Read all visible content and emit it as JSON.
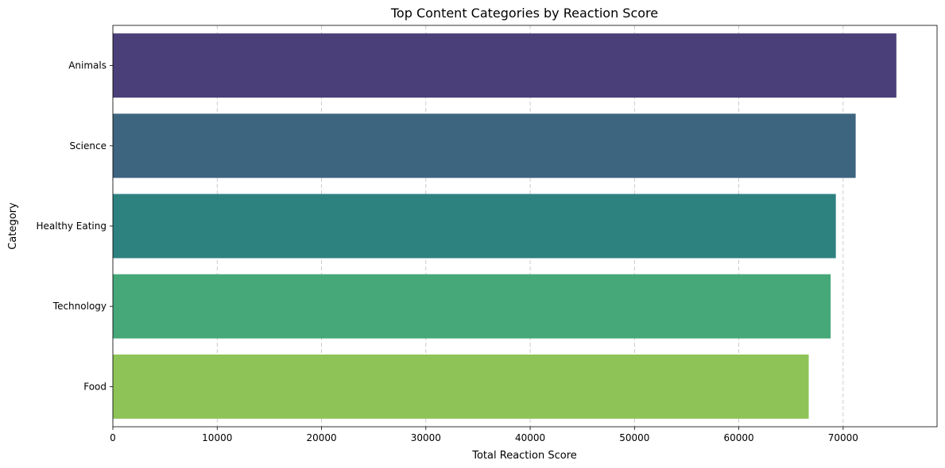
{
  "chart_data": {
    "type": "bar",
    "orientation": "horizontal",
    "title": "Top Content Categories by Reaction Score",
    "xlabel": "Total Reaction Score",
    "ylabel": "Category",
    "categories": [
      "Animals",
      "Science",
      "Healthy Eating",
      "Technology",
      "Food"
    ],
    "values": [
      75100,
      71200,
      69300,
      68800,
      66700
    ],
    "colors": [
      "#4b3f79",
      "#3e6580",
      "#2d8280",
      "#46a778",
      "#8ec457"
    ],
    "xlim": [
      0,
      79000
    ],
    "xticks": [
      0,
      10000,
      20000,
      30000,
      40000,
      50000,
      60000,
      70000
    ],
    "xtick_labels": [
      "0",
      "10000",
      "20000",
      "30000",
      "40000",
      "50000",
      "60000",
      "70000"
    ],
    "grid": "x-axis, dashed",
    "legend": "none"
  }
}
